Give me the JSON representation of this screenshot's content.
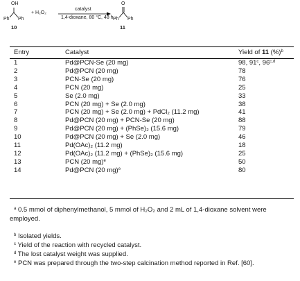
{
  "scheme": {
    "reactant_oh": "OH",
    "reactant_ph_left": "Ph",
    "reactant_ph_right": "Ph",
    "reagent": "+ H₂O₂",
    "catalyst_label": "catalyst",
    "conditions": "1,4-dioxane, 80 °C, 48 h",
    "product_o": "O",
    "product_ph_left": "Ph",
    "product_ph_right": "Ph",
    "reactant_number": "10",
    "product_number": "11"
  },
  "table": {
    "headers": {
      "entry": "Entry",
      "catalyst": "Catalyst",
      "yield_prefix": "Yield of ",
      "yield_compound": "11",
      "yield_suffix": " (%)",
      "yield_note": "b"
    },
    "rows": [
      {
        "entry": "1",
        "catalyst": "Pd@PCN-Se (20 mg)",
        "yield": "98, 91",
        "yield_sup1": "c",
        "yield_mid": ", 96",
        "yield_sup2": "c,d"
      },
      {
        "entry": "2",
        "catalyst": "Pd@PCN (20 mg)",
        "yield": "78"
      },
      {
        "entry": "3",
        "catalyst": "PCN-Se (20 mg)",
        "yield": "76"
      },
      {
        "entry": "4",
        "catalyst": "PCN (20 mg)",
        "yield": "25"
      },
      {
        "entry": "5",
        "catalyst": "Se (2.0 mg)",
        "yield": "33"
      },
      {
        "entry": "6",
        "catalyst": "PCN (20 mg) + Se (2.0 mg)",
        "yield": "38"
      },
      {
        "entry": "7",
        "catalyst": "PCN (20 mg) + Se (2.0 mg) + PdCl₂ (11.2 mg)",
        "yield": "41"
      },
      {
        "entry": "8",
        "catalyst": "Pd@PCN (20 mg) + PCN-Se (20 mg)",
        "yield": "88"
      },
      {
        "entry": "9",
        "catalyst": "Pd@PCN (20 mg) + (PhSe)₂ (15.6 mg)",
        "yield": "79"
      },
      {
        "entry": "10",
        "catalyst": "Pd@PCN (20 mg) + Se (2.0 mg)",
        "yield": "46"
      },
      {
        "entry": "11",
        "catalyst": "Pd(OAc)₂ (11.2 mg)",
        "yield": "18"
      },
      {
        "entry": "12",
        "catalyst": "Pd(OAc)₂ (11.2 mg) + (PhSe)₂ (15.6 mg)",
        "yield": "25"
      },
      {
        "entry": "13",
        "catalyst": "PCN (20 mg)",
        "catalyst_sup": "e",
        "yield": "50"
      },
      {
        "entry": "14",
        "catalyst": "Pd@PCN (20 mg)",
        "catalyst_sup": "e",
        "yield": "80"
      }
    ]
  },
  "footnotes": {
    "a_mark": "a",
    "a_text": " 0.5 mmol of diphenylmethanol, 5 mmol of H₂O₂ and 2 mL of 1,4-dioxane solvent were employed.",
    "b_mark": "b",
    "b_text": " Isolated yields.",
    "c_mark": "c",
    "c_text": " Yield of the reaction with recycled catalyst.",
    "d_mark": "d",
    "d_text": " The lost catalyst weight was supplied.",
    "e_mark": "e",
    "e_text": " PCN was prepared through the two-step calcination method reported in Ref. [60]."
  }
}
